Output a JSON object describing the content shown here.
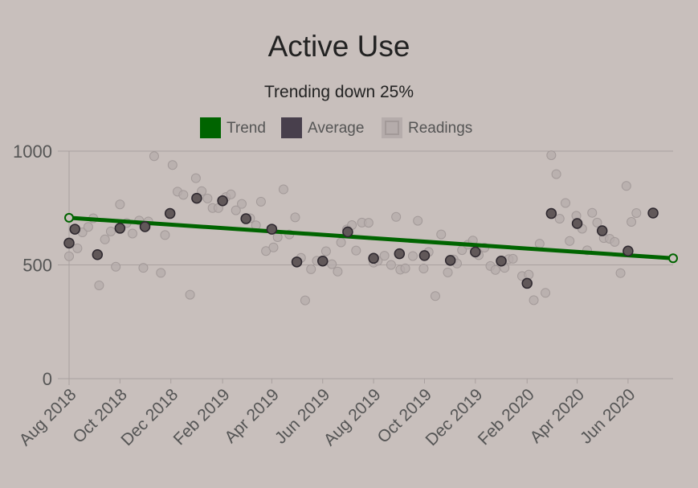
{
  "chart_data": {
    "type": "scatter",
    "title": "Active Use",
    "subtitle": "Trending down 25%",
    "legend": {
      "placement": "top-center",
      "items": [
        {
          "name": "Trend",
          "color": "#006400"
        },
        {
          "name": "Average",
          "color": "#483f4c"
        },
        {
          "name": "Readings",
          "color": "#b5acab"
        }
      ]
    },
    "y_axis": {
      "min": 0,
      "max": 1000,
      "ticks": [
        0,
        500,
        1000
      ]
    },
    "x_axis": {
      "start": "2018-08-01",
      "end": "2020-07-25",
      "ticks": [
        {
          "date": "2018-08-01",
          "label": "Aug 2018"
        },
        {
          "date": "2018-10-01",
          "label": "Oct 2018"
        },
        {
          "date": "2018-12-01",
          "label": "Dec 2018"
        },
        {
          "date": "2019-02-01",
          "label": "Feb 2019"
        },
        {
          "date": "2019-04-01",
          "label": "Apr 2019"
        },
        {
          "date": "2019-06-01",
          "label": "Jun 2019"
        },
        {
          "date": "2019-08-01",
          "label": "Aug 2019"
        },
        {
          "date": "2019-10-01",
          "label": "Oct 2019"
        },
        {
          "date": "2019-12-01",
          "label": "Dec 2019"
        },
        {
          "date": "2020-02-01",
          "label": "Feb 2020"
        },
        {
          "date": "2020-04-01",
          "label": "Apr 2020"
        },
        {
          "date": "2020-06-01",
          "label": "Jun 2020"
        }
      ]
    },
    "grid": {
      "horizontal": true,
      "vertical": false
    },
    "series": [
      {
        "name": "Trend",
        "type": "line",
        "color": "#006400",
        "points": [
          {
            "x": "2018-08-01",
            "y": 707
          },
          {
            "x": "2020-07-25",
            "y": 529
          }
        ]
      },
      {
        "name": "Average",
        "type": "scatter",
        "color": "#483f4c",
        "points": [
          {
            "x": "2018-08-01",
            "y": 596
          },
          {
            "x": "2018-08-08",
            "y": 657
          },
          {
            "x": "2018-09-04",
            "y": 545
          },
          {
            "x": "2018-10-01",
            "y": 661
          },
          {
            "x": "2018-10-31",
            "y": 668
          },
          {
            "x": "2018-11-30",
            "y": 726
          },
          {
            "x": "2019-01-01",
            "y": 793
          },
          {
            "x": "2019-02-01",
            "y": 782
          },
          {
            "x": "2019-03-01",
            "y": 703
          },
          {
            "x": "2019-04-01",
            "y": 657
          },
          {
            "x": "2019-05-01",
            "y": 513
          },
          {
            "x": "2019-06-01",
            "y": 517
          },
          {
            "x": "2019-07-01",
            "y": 645
          },
          {
            "x": "2019-08-01",
            "y": 529
          },
          {
            "x": "2019-09-01",
            "y": 549
          },
          {
            "x": "2019-10-01",
            "y": 541
          },
          {
            "x": "2019-11-01",
            "y": 520
          },
          {
            "x": "2019-12-01",
            "y": 557
          },
          {
            "x": "2020-01-01",
            "y": 517
          },
          {
            "x": "2020-02-01",
            "y": 419
          },
          {
            "x": "2020-03-01",
            "y": 726
          },
          {
            "x": "2020-04-01",
            "y": 682
          },
          {
            "x": "2020-05-01",
            "y": 650
          },
          {
            "x": "2020-06-01",
            "y": 561
          },
          {
            "x": "2020-07-01",
            "y": 728
          }
        ]
      },
      {
        "name": "Readings",
        "type": "scatter",
        "color": "#b5acab",
        "points": [
          {
            "x": "2018-08-01",
            "y": 538
          },
          {
            "x": "2018-08-11",
            "y": 573
          },
          {
            "x": "2018-08-17",
            "y": 643
          },
          {
            "x": "2018-08-24",
            "y": 667
          },
          {
            "x": "2018-08-30",
            "y": 705
          },
          {
            "x": "2018-09-06",
            "y": 410
          },
          {
            "x": "2018-09-13",
            "y": 612
          },
          {
            "x": "2018-09-20",
            "y": 647
          },
          {
            "x": "2018-09-26",
            "y": 492
          },
          {
            "x": "2018-10-01",
            "y": 766
          },
          {
            "x": "2018-10-09",
            "y": 684
          },
          {
            "x": "2018-10-16",
            "y": 638
          },
          {
            "x": "2018-10-24",
            "y": 695
          },
          {
            "x": "2018-10-29",
            "y": 487
          },
          {
            "x": "2018-11-04",
            "y": 691
          },
          {
            "x": "2018-11-11",
            "y": 978
          },
          {
            "x": "2018-11-19",
            "y": 465
          },
          {
            "x": "2018-11-24",
            "y": 631
          },
          {
            "x": "2018-12-03",
            "y": 939
          },
          {
            "x": "2018-12-09",
            "y": 822
          },
          {
            "x": "2018-12-16",
            "y": 808
          },
          {
            "x": "2018-12-24",
            "y": 369
          },
          {
            "x": "2018-12-31",
            "y": 881
          },
          {
            "x": "2019-01-07",
            "y": 824
          },
          {
            "x": "2019-01-14",
            "y": 792
          },
          {
            "x": "2019-01-20",
            "y": 750
          },
          {
            "x": "2019-01-27",
            "y": 750
          },
          {
            "x": "2019-02-05",
            "y": 798
          },
          {
            "x": "2019-02-11",
            "y": 810
          },
          {
            "x": "2019-02-17",
            "y": 740
          },
          {
            "x": "2019-02-24",
            "y": 768
          },
          {
            "x": "2019-03-06",
            "y": 705
          },
          {
            "x": "2019-03-13",
            "y": 674
          },
          {
            "x": "2019-03-19",
            "y": 778
          },
          {
            "x": "2019-03-25",
            "y": 561
          },
          {
            "x": "2019-04-03",
            "y": 577
          },
          {
            "x": "2019-04-08",
            "y": 622
          },
          {
            "x": "2019-04-15",
            "y": 832
          },
          {
            "x": "2019-04-22",
            "y": 634
          },
          {
            "x": "2019-04-29",
            "y": 709
          },
          {
            "x": "2019-05-06",
            "y": 531
          },
          {
            "x": "2019-05-11",
            "y": 344
          },
          {
            "x": "2019-05-18",
            "y": 481
          },
          {
            "x": "2019-05-25",
            "y": 518
          },
          {
            "x": "2019-06-05",
            "y": 560
          },
          {
            "x": "2019-06-12",
            "y": 503
          },
          {
            "x": "2019-06-19",
            "y": 471
          },
          {
            "x": "2019-06-23",
            "y": 599
          },
          {
            "x": "2019-06-30",
            "y": 656
          },
          {
            "x": "2019-07-06",
            "y": 675
          },
          {
            "x": "2019-07-11",
            "y": 563
          },
          {
            "x": "2019-07-18",
            "y": 686
          },
          {
            "x": "2019-07-26",
            "y": 685
          },
          {
            "x": "2019-08-01",
            "y": 510
          },
          {
            "x": "2019-08-06",
            "y": 518
          },
          {
            "x": "2019-08-14",
            "y": 540
          },
          {
            "x": "2019-08-22",
            "y": 500
          },
          {
            "x": "2019-08-28",
            "y": 711
          },
          {
            "x": "2019-09-02",
            "y": 479
          },
          {
            "x": "2019-09-08",
            "y": 485
          },
          {
            "x": "2019-09-17",
            "y": 539
          },
          {
            "x": "2019-09-23",
            "y": 694
          },
          {
            "x": "2019-09-30",
            "y": 484
          },
          {
            "x": "2019-10-06",
            "y": 557
          },
          {
            "x": "2019-10-14",
            "y": 363
          },
          {
            "x": "2019-10-21",
            "y": 634
          },
          {
            "x": "2019-10-29",
            "y": 467
          },
          {
            "x": "2019-11-05",
            "y": 524
          },
          {
            "x": "2019-11-09",
            "y": 506
          },
          {
            "x": "2019-11-15",
            "y": 565
          },
          {
            "x": "2019-11-22",
            "y": 589
          },
          {
            "x": "2019-11-28",
            "y": 607
          },
          {
            "x": "2019-12-05",
            "y": 543
          },
          {
            "x": "2019-12-12",
            "y": 576
          },
          {
            "x": "2019-12-19",
            "y": 495
          },
          {
            "x": "2019-12-25",
            "y": 478
          },
          {
            "x": "2020-01-05",
            "y": 487
          },
          {
            "x": "2020-01-10",
            "y": 525
          },
          {
            "x": "2020-01-15",
            "y": 527
          },
          {
            "x": "2020-01-26",
            "y": 451
          },
          {
            "x": "2020-02-03",
            "y": 457
          },
          {
            "x": "2020-02-09",
            "y": 345
          },
          {
            "x": "2020-02-16",
            "y": 593
          },
          {
            "x": "2020-02-23",
            "y": 377
          },
          {
            "x": "2020-03-01",
            "y": 982
          },
          {
            "x": "2020-03-07",
            "y": 899
          },
          {
            "x": "2020-03-11",
            "y": 703
          },
          {
            "x": "2020-03-18",
            "y": 772
          },
          {
            "x": "2020-03-23",
            "y": 605
          },
          {
            "x": "2020-03-31",
            "y": 716
          },
          {
            "x": "2020-04-07",
            "y": 659
          },
          {
            "x": "2020-04-13",
            "y": 564
          },
          {
            "x": "2020-04-19",
            "y": 729
          },
          {
            "x": "2020-04-25",
            "y": 686
          },
          {
            "x": "2020-05-03",
            "y": 618
          },
          {
            "x": "2020-05-10",
            "y": 615
          },
          {
            "x": "2020-05-16",
            "y": 601
          },
          {
            "x": "2020-05-23",
            "y": 464
          },
          {
            "x": "2020-05-30",
            "y": 847
          },
          {
            "x": "2020-06-05",
            "y": 689
          },
          {
            "x": "2020-06-11",
            "y": 728
          }
        ]
      }
    ]
  }
}
